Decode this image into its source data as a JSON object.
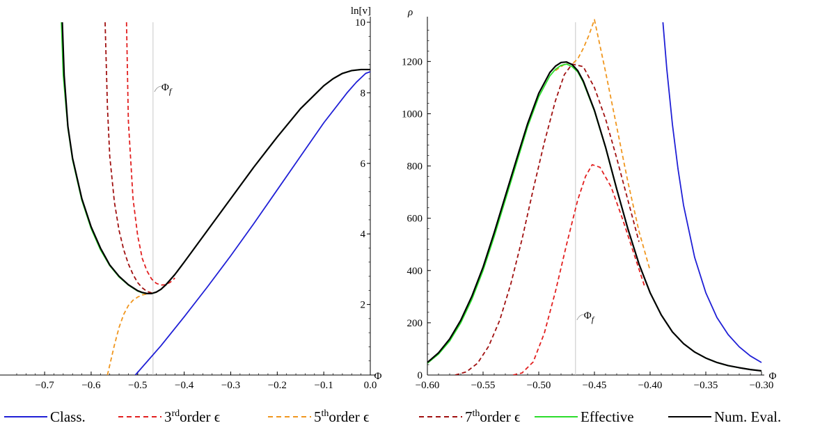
{
  "chart_data": [
    {
      "type": "line",
      "title": "",
      "xlabel": "Φ",
      "ylabel": "ln[v]",
      "xlim": [
        -0.76,
        0.0
      ],
      "ylim": [
        0,
        10
      ],
      "xticks": [
        -0.7,
        -0.6,
        -0.5,
        -0.4,
        -0.3,
        -0.2,
        -0.1,
        0.0
      ],
      "xtick_labels": [
        "−0.7",
        "−0.6",
        "−0.5",
        "−0.4",
        "−0.3",
        "−0.2",
        "−0.1",
        "0.0"
      ],
      "yticks": [
        2,
        4,
        6,
        8,
        10
      ],
      "ytick_labels": [
        "2",
        "4",
        "6",
        "8",
        "10"
      ],
      "annotation": {
        "text": "Φf",
        "x": -0.467
      },
      "vline_x": -0.467,
      "series": [
        {
          "name": "Class.",
          "style": "solid",
          "color": "#1f1fd6",
          "x": [
            -0.505,
            -0.45,
            -0.4,
            -0.35,
            -0.3,
            -0.25,
            -0.2,
            -0.15,
            -0.1,
            -0.05,
            -0.03,
            -0.01,
            0.0
          ],
          "y": [
            0.0,
            0.83,
            1.65,
            2.5,
            3.38,
            4.3,
            5.25,
            6.2,
            7.15,
            8.0,
            8.3,
            8.55,
            8.6
          ]
        },
        {
          "name": "3rdorder ϵ",
          "style": "dashed",
          "color": "#e21f1f",
          "x": [
            -0.524,
            -0.52,
            -0.51,
            -0.5,
            -0.49,
            -0.48,
            -0.47,
            -0.46,
            -0.45,
            -0.44,
            -0.43,
            -0.42
          ],
          "y": [
            10.0,
            7.2,
            5.0,
            3.95,
            3.3,
            2.95,
            2.72,
            2.6,
            2.55,
            2.56,
            2.63,
            2.75
          ]
        },
        {
          "name": "5thorder ϵ",
          "style": "dashed",
          "color": "#f0961e",
          "x": [
            -0.565,
            -0.55,
            -0.54,
            -0.53,
            -0.52,
            -0.51,
            -0.5,
            -0.49,
            -0.48,
            -0.47,
            -0.46
          ],
          "y": [
            0.0,
            0.85,
            1.35,
            1.72,
            1.97,
            2.12,
            2.21,
            2.27,
            2.3,
            2.32,
            2.34
          ]
        },
        {
          "name": "7thorder ϵ",
          "style": "dashed",
          "color": "#a01010",
          "x": [
            -0.57,
            -0.565,
            -0.56,
            -0.55,
            -0.54,
            -0.53,
            -0.52,
            -0.51,
            -0.5,
            -0.49,
            -0.48,
            -0.47,
            -0.46,
            -0.45
          ],
          "y": [
            10.0,
            7.6,
            6.2,
            4.9,
            4.1,
            3.55,
            3.15,
            2.85,
            2.62,
            2.47,
            2.37,
            2.33,
            2.35,
            2.42
          ]
        },
        {
          "name": "Effective",
          "style": "solid",
          "color": "#2bdc2b",
          "x": [
            -0.664,
            -0.66,
            -0.65,
            -0.64,
            -0.62,
            -0.6,
            -0.58,
            -0.56,
            -0.54,
            -0.52,
            -0.5,
            -0.49,
            -0.48,
            -0.47,
            -0.46,
            -0.45,
            -0.44,
            -0.42,
            -0.4,
            -0.35,
            -0.3,
            -0.25,
            -0.2,
            -0.15,
            -0.1,
            -0.08,
            -0.06,
            -0.04,
            -0.02,
            0.0
          ],
          "y": [
            10.0,
            8.5,
            7.0,
            6.1,
            4.95,
            4.15,
            3.55,
            3.1,
            2.78,
            2.55,
            2.38,
            2.33,
            2.31,
            2.31,
            2.35,
            2.43,
            2.55,
            2.85,
            3.2,
            4.1,
            5.0,
            5.9,
            6.75,
            7.55,
            8.2,
            8.4,
            8.55,
            8.63,
            8.66,
            8.66
          ]
        },
        {
          "name": "Num. Eval.",
          "style": "solid",
          "color": "#000000",
          "x": [
            -0.662,
            -0.658,
            -0.65,
            -0.64,
            -0.62,
            -0.6,
            -0.58,
            -0.56,
            -0.54,
            -0.52,
            -0.5,
            -0.49,
            -0.48,
            -0.47,
            -0.46,
            -0.45,
            -0.44,
            -0.42,
            -0.4,
            -0.35,
            -0.3,
            -0.25,
            -0.2,
            -0.15,
            -0.1,
            -0.08,
            -0.06,
            -0.04,
            -0.02,
            0.0
          ],
          "y": [
            10.0,
            8.5,
            7.05,
            6.15,
            5.0,
            4.2,
            3.6,
            3.12,
            2.8,
            2.56,
            2.39,
            2.34,
            2.31,
            2.31,
            2.35,
            2.43,
            2.55,
            2.85,
            3.2,
            4.1,
            5.0,
            5.9,
            6.75,
            7.55,
            8.2,
            8.4,
            8.55,
            8.63,
            8.66,
            8.66
          ]
        }
      ]
    },
    {
      "type": "line",
      "title": "",
      "xlabel": "Φ",
      "ylabel": "ρ",
      "xlim": [
        -0.6,
        -0.3
      ],
      "ylim": [
        0,
        1350
      ],
      "xticks": [
        -0.6,
        -0.55,
        -0.5,
        -0.45,
        -0.4,
        -0.35,
        -0.3
      ],
      "xtick_labels": [
        "−0.60",
        "−0.55",
        "−0.50",
        "−0.45",
        "−0.40",
        "−0.35",
        "−0.30"
      ],
      "yticks": [
        0,
        200,
        400,
        600,
        800,
        1000,
        1200
      ],
      "ytick_labels": [
        "0",
        "200",
        "400",
        "600",
        "800",
        "1000",
        "1200"
      ],
      "annotation": {
        "text": "Φf",
        "x": -0.467
      },
      "vline_x": -0.467,
      "series": [
        {
          "name": "Class.",
          "style": "solid",
          "color": "#1f1fd6",
          "x": [
            -0.3885,
            -0.385,
            -0.38,
            -0.375,
            -0.37,
            -0.36,
            -0.35,
            -0.34,
            -0.33,
            -0.32,
            -0.31,
            -0.3
          ],
          "y": [
            1350,
            1170,
            960,
            790,
            650,
            450,
            315,
            220,
            155,
            108,
            73,
            48
          ]
        },
        {
          "name": "3rdorder ϵ",
          "style": "dashed",
          "color": "#e21f1f",
          "x": [
            -0.523,
            -0.515,
            -0.505,
            -0.495,
            -0.485,
            -0.475,
            -0.465,
            -0.458,
            -0.452,
            -0.445,
            -0.435,
            -0.425,
            -0.415,
            -0.405
          ],
          "y": [
            0,
            8,
            50,
            160,
            320,
            500,
            670,
            760,
            805,
            795,
            720,
            600,
            470,
            340
          ]
        },
        {
          "name": "5thorder ϵ",
          "style": "dashed",
          "color": "#f0961e",
          "x": [
            -0.485,
            -0.48,
            -0.475,
            -0.47,
            -0.465,
            -0.46,
            -0.455,
            -0.45,
            -0.44,
            -0.43,
            -0.42,
            -0.41,
            -0.4
          ],
          "y": [
            1165,
            1180,
            1195,
            1190,
            1210,
            1250,
            1300,
            1360,
            1160,
            950,
            740,
            550,
            400
          ]
        },
        {
          "name": "7thorder ϵ",
          "style": "dashed",
          "color": "#a01010",
          "x": [
            -0.575,
            -0.565,
            -0.555,
            -0.545,
            -0.535,
            -0.525,
            -0.515,
            -0.505,
            -0.495,
            -0.485,
            -0.477,
            -0.47,
            -0.46,
            -0.45,
            -0.44,
            -0.43,
            -0.42,
            -0.41
          ],
          "y": [
            0,
            12,
            45,
            110,
            210,
            350,
            520,
            710,
            890,
            1050,
            1150,
            1190,
            1180,
            1100,
            980,
            830,
            670,
            510
          ]
        },
        {
          "name": "Effective",
          "style": "solid",
          "color": "#2bdc2b",
          "x": [
            -0.6,
            -0.59,
            -0.58,
            -0.57,
            -0.56,
            -0.55,
            -0.54,
            -0.53,
            -0.52,
            -0.51,
            -0.5,
            -0.49,
            -0.485,
            -0.48,
            -0.475,
            -0.47,
            -0.465,
            -0.46,
            -0.45,
            -0.44,
            -0.43,
            -0.42,
            -0.41,
            -0.4,
            -0.39,
            -0.38,
            -0.37,
            -0.36,
            -0.35,
            -0.34,
            -0.33,
            -0.32,
            -0.31,
            -0.3
          ],
          "y": [
            45,
            80,
            130,
            200,
            290,
            400,
            530,
            670,
            810,
            950,
            1065,
            1145,
            1170,
            1185,
            1190,
            1180,
            1160,
            1120,
            1010,
            870,
            710,
            560,
            425,
            315,
            230,
            165,
            120,
            88,
            65,
            48,
            36,
            28,
            21,
            16
          ]
        },
        {
          "name": "Num. Eval.",
          "style": "solid",
          "color": "#000000",
          "x": [
            -0.6,
            -0.59,
            -0.58,
            -0.57,
            -0.56,
            -0.55,
            -0.54,
            -0.53,
            -0.52,
            -0.51,
            -0.5,
            -0.49,
            -0.485,
            -0.48,
            -0.475,
            -0.47,
            -0.465,
            -0.46,
            -0.45,
            -0.44,
            -0.43,
            -0.42,
            -0.41,
            -0.4,
            -0.39,
            -0.38,
            -0.37,
            -0.36,
            -0.35,
            -0.34,
            -0.33,
            -0.32,
            -0.31,
            -0.3
          ],
          "y": [
            48,
            85,
            138,
            210,
            302,
            413,
            545,
            685,
            825,
            962,
            1078,
            1158,
            1182,
            1196,
            1198,
            1188,
            1165,
            1125,
            1013,
            872,
            712,
            560,
            425,
            315,
            230,
            165,
            120,
            88,
            65,
            48,
            36,
            28,
            21,
            16
          ]
        }
      ]
    }
  ],
  "legend": [
    {
      "name": "Class.",
      "color": "#1f1fd6",
      "style": "solid",
      "text": "Class."
    },
    {
      "name": "3rdorder",
      "color": "#e21f1f",
      "style": "dashed",
      "sup": "rd",
      "pre": "3",
      "text": "order ϵ"
    },
    {
      "name": "5thorder",
      "color": "#f0961e",
      "style": "dashed",
      "sup": "th",
      "pre": "5",
      "text": "order ϵ"
    },
    {
      "name": "7thorder",
      "color": "#a01010",
      "style": "dashed",
      "sup": "th",
      "pre": "7",
      "text": "order ϵ"
    },
    {
      "name": "Effective",
      "color": "#2bdc2b",
      "style": "solid",
      "text": "Effective"
    },
    {
      "name": "Num. Eval.",
      "color": "#000000",
      "style": "solid",
      "text": "Num. Eval."
    }
  ]
}
